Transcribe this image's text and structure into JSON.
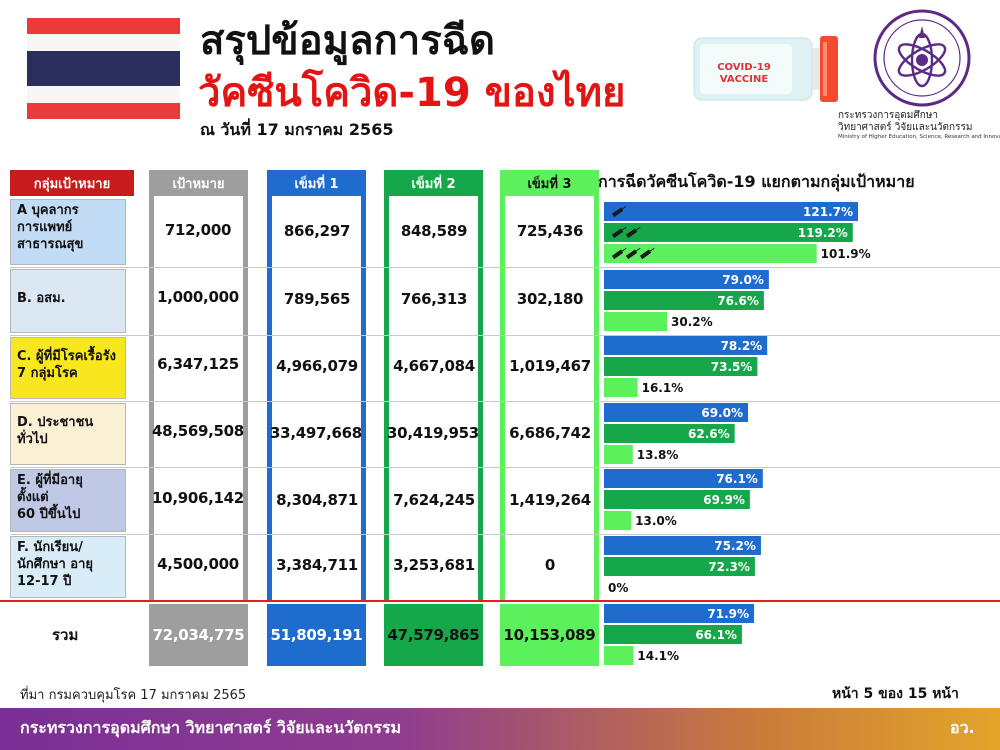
{
  "header": {
    "title_line1": "สรุปข้อมูลการฉีด",
    "title_line2": "วัคซีนโควิด-19  ของไทย",
    "as_of": "ณ วันที่ 17 มกราคม 2565",
    "vaccine_label_line1": "COVID-19",
    "vaccine_label_line2": "VACCINE",
    "ministry_th_line1": "กระทรวงการอุดมศึกษา",
    "ministry_th_line2": "วิทยาศาสตร์ วิจัยและนวัตกรรม",
    "ministry_en": "Ministry of Higher Education, Science, Research and Innovation"
  },
  "colors": {
    "title_red": "#e31414",
    "group_header": "#c81b1b",
    "target": "#9e9e9e",
    "dose1": "#1f6ccf",
    "dose2": "#16a74a",
    "dose3": "#5cf05c",
    "flag_red": "#ec3a3a",
    "flag_blue": "#2a2f5e"
  },
  "table": {
    "headers": {
      "group": "กลุ่มเป้าหมาย",
      "target": "เป้าหมาย",
      "dose1": "เข็มที่ 1",
      "dose2": "เข็มที่ 2",
      "dose3": "เข็มที่ 3"
    },
    "rows": [
      {
        "group": "A บุคลากร\nการแพทย์\nสาธารณสุข",
        "target": "712,000",
        "dose1": "866,297",
        "dose2": "848,589",
        "dose3": "725,436"
      },
      {
        "group": "B. อสม.",
        "target": "1,000,000",
        "dose1": "789,565",
        "dose2": "766,313",
        "dose3": "302,180"
      },
      {
        "group": "C. ผู้ที่มีโรคเรื้อรัง\n7 กลุ่มโรค",
        "target": "6,347,125",
        "dose1": "4,966,079",
        "dose2": "4,667,084",
        "dose3": "1,019,467"
      },
      {
        "group": "D. ประชาชน\nทั่วไป",
        "target": "48,569,508",
        "dose1": "33,497,668",
        "dose2": "30,419,953",
        "dose3": "6,686,742"
      },
      {
        "group": "E. ผู้ที่มีอายุ\nตั้งแต่\n60 ปีขึ้นไป",
        "target": "10,906,142",
        "dose1": "8,304,871",
        "dose2": "7,624,245",
        "dose3": "1,419,264"
      },
      {
        "group": "F. นักเรียน/\nนักศึกษา อายุ\n12-17 ปี",
        "target": "4,500,000",
        "dose1": "3,384,711",
        "dose2": "3,253,681",
        "dose3": "0"
      }
    ],
    "total": {
      "label": "รวม",
      "target": "72,034,775",
      "dose1": "51,809,191",
      "dose2": "47,579,865",
      "dose3": "10,153,089"
    }
  },
  "chart_data": {
    "type": "bar",
    "orientation": "horizontal",
    "title": "การฉีดวัคซีนโควิด-19 แยกตามกลุ่มเป้าหมาย",
    "categories": [
      "A",
      "B",
      "C",
      "D",
      "E",
      "F",
      "รวม"
    ],
    "series": [
      {
        "values": [
          121.7,
          79.0,
          78.2,
          69.0,
          76.1,
          75.2,
          71.9
        ],
        "labels": [
          "121.7%",
          "79.0%",
          "78.2%",
          "69.0%",
          "76.1%",
          "75.2%",
          "71.9%"
        ],
        "color": "#1f6ccf"
      },
      {
        "values": [
          119.2,
          76.6,
          73.5,
          62.6,
          69.9,
          72.3,
          66.1
        ],
        "labels": [
          "119.2%",
          "76.6%",
          "73.5%",
          "62.6%",
          "69.9%",
          "72.3%",
          "66.1%"
        ],
        "color": "#16a74a"
      },
      {
        "values": [
          101.9,
          30.2,
          16.1,
          13.8,
          13.0,
          0,
          14.1
        ],
        "labels": [
          "101.9%",
          "30.2%",
          "16.1%",
          "13.8%",
          "13.0%",
          "0%",
          "14.1%"
        ],
        "color": "#5cf05c"
      }
    ],
    "grid": false,
    "legend": "none"
  },
  "footer": {
    "source": "ที่มา กรมควบคุมโรค 17 มกราคม 2565",
    "page": "หน้า 5 ของ 15 หน้า",
    "ministry": "กระทรวงการอุดมศึกษา วิทยาศาสตร์ วิจัยและนวัตกรรม",
    "abbr": "อว."
  },
  "icons": [
    "thai-flag-icon",
    "vaccine-vial-icon",
    "ministry-logo-icon",
    "syringe-icon"
  ]
}
